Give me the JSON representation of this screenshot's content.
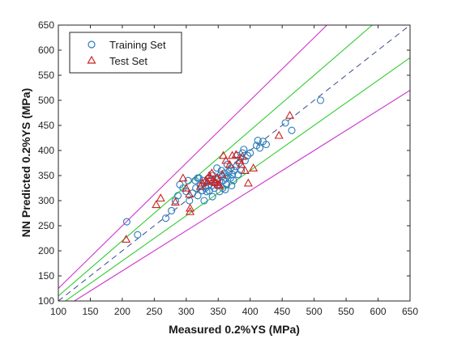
{
  "chart_data": {
    "type": "scatter",
    "title": "",
    "xlabel": "Measured 0.2%YS (MPa)",
    "ylabel": "NN Predicted 0.2%YS (MPa)",
    "xlim": [
      100,
      650
    ],
    "ylim": [
      100,
      650
    ],
    "xticks": [
      100,
      150,
      200,
      250,
      300,
      350,
      400,
      450,
      500,
      550,
      600,
      650
    ],
    "yticks": [
      100,
      150,
      200,
      250,
      300,
      350,
      400,
      450,
      500,
      550,
      600,
      650
    ],
    "grid": false,
    "legend_position": "top-left",
    "colors": {
      "training": "#2b7bb9",
      "test": "#cc2222",
      "identity": "#3a4a8a",
      "inner_band": "#33cc33",
      "outer_band": "#cc33cc"
    },
    "reference_lines": [
      {
        "kind": "identity",
        "slope": 1.0,
        "style": "dashed"
      },
      {
        "kind": "inner_band",
        "slope": 1.1
      },
      {
        "kind": "inner_band",
        "slope": 0.9
      },
      {
        "kind": "outer_band",
        "slope": 1.25
      },
      {
        "kind": "outer_band",
        "slope": 0.8
      }
    ],
    "series": [
      {
        "name": "Training Set",
        "marker": "circle",
        "points": [
          [
            207,
            258
          ],
          [
            224,
            232
          ],
          [
            268,
            265
          ],
          [
            277,
            280
          ],
          [
            283,
            300
          ],
          [
            287,
            310
          ],
          [
            290,
            332
          ],
          [
            295,
            325
          ],
          [
            300,
            318
          ],
          [
            305,
            300
          ],
          [
            310,
            315
          ],
          [
            314,
            340
          ],
          [
            315,
            325
          ],
          [
            318,
            310
          ],
          [
            320,
            345
          ],
          [
            322,
            330
          ],
          [
            325,
            320
          ],
          [
            326,
            340
          ],
          [
            328,
            335
          ],
          [
            330,
            325
          ],
          [
            332,
            318
          ],
          [
            334,
            330
          ],
          [
            335,
            345
          ],
          [
            338,
            340
          ],
          [
            340,
            330
          ],
          [
            342,
            350
          ],
          [
            344,
            325
          ],
          [
            345,
            335
          ],
          [
            347,
            342
          ],
          [
            349,
            330
          ],
          [
            350,
            345
          ],
          [
            352,
            338
          ],
          [
            354,
            352
          ],
          [
            355,
            360
          ],
          [
            357,
            325
          ],
          [
            358,
            340
          ],
          [
            360,
            355
          ],
          [
            362,
            345
          ],
          [
            363,
            332
          ],
          [
            365,
            350
          ],
          [
            367,
            358
          ],
          [
            369,
            345
          ],
          [
            370,
            365
          ],
          [
            372,
            352
          ],
          [
            375,
            360
          ],
          [
            378,
            368
          ],
          [
            380,
            390
          ],
          [
            383,
            375
          ],
          [
            385,
            385
          ],
          [
            388,
            395
          ],
          [
            390,
            402
          ],
          [
            392,
            380
          ],
          [
            396,
            390
          ],
          [
            400,
            395
          ],
          [
            410,
            410
          ],
          [
            412,
            420
          ],
          [
            415,
            405
          ],
          [
            420,
            418
          ],
          [
            425,
            412
          ],
          [
            455,
            455
          ],
          [
            465,
            440
          ],
          [
            510,
            500
          ],
          [
            303,
            340
          ],
          [
            318,
            345
          ],
          [
            336,
            320
          ],
          [
            348,
            365
          ],
          [
            356,
            348
          ],
          [
            364,
            372
          ],
          [
            374,
            340
          ],
          [
            381,
            352
          ],
          [
            386,
            360
          ],
          [
            328,
            300
          ],
          [
            341,
            308
          ],
          [
            352,
            318
          ],
          [
            361,
            322
          ],
          [
            371,
            330
          ]
        ]
      },
      {
        "name": "Test Set",
        "marker": "triangle",
        "points": [
          [
            206,
            223
          ],
          [
            253,
            292
          ],
          [
            260,
            305
          ],
          [
            283,
            297
          ],
          [
            295,
            345
          ],
          [
            300,
            325
          ],
          [
            305,
            313
          ],
          [
            306,
            285
          ],
          [
            306,
            278
          ],
          [
            322,
            328
          ],
          [
            325,
            335
          ],
          [
            330,
            340
          ],
          [
            333,
            338
          ],
          [
            336,
            350
          ],
          [
            338,
            345
          ],
          [
            340,
            355
          ],
          [
            342,
            342
          ],
          [
            344,
            338
          ],
          [
            346,
            336
          ],
          [
            348,
            345
          ],
          [
            350,
            332
          ],
          [
            352,
            330
          ],
          [
            356,
            352
          ],
          [
            358,
            390
          ],
          [
            362,
            380
          ],
          [
            368,
            372
          ],
          [
            372,
            390
          ],
          [
            378,
            392
          ],
          [
            384,
            380
          ],
          [
            386,
            372
          ],
          [
            388,
            388
          ],
          [
            392,
            360
          ],
          [
            397,
            335
          ],
          [
            405,
            365
          ],
          [
            445,
            430
          ],
          [
            462,
            470
          ]
        ]
      }
    ]
  }
}
